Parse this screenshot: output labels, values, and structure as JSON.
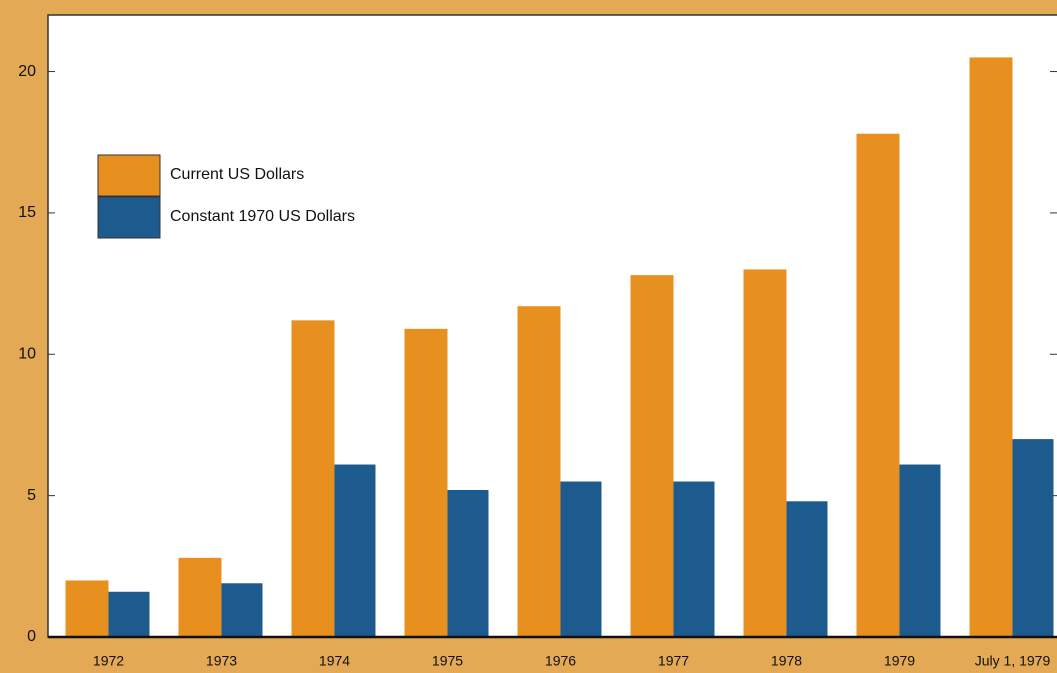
{
  "chart_data": {
    "type": "bar",
    "categories": [
      "1972",
      "1973",
      "1974",
      "1975",
      "1976",
      "1977",
      "1978",
      "1979",
      "July 1, 1979"
    ],
    "series": [
      {
        "name": "Current US Dollars",
        "color": "#e8901f",
        "values": [
          2.0,
          2.8,
          11.2,
          10.9,
          11.7,
          12.8,
          13.0,
          17.8,
          20.5
        ]
      },
      {
        "name": "Constant 1970 US Dollars",
        "color": "#1d5b8f",
        "values": [
          1.6,
          1.9,
          6.1,
          5.2,
          5.5,
          5.5,
          4.8,
          6.1,
          7.0
        ]
      }
    ],
    "ylim": [
      0,
      22
    ],
    "yticks": [
      0,
      5,
      10,
      15,
      20
    ],
    "legend": "upper left"
  }
}
